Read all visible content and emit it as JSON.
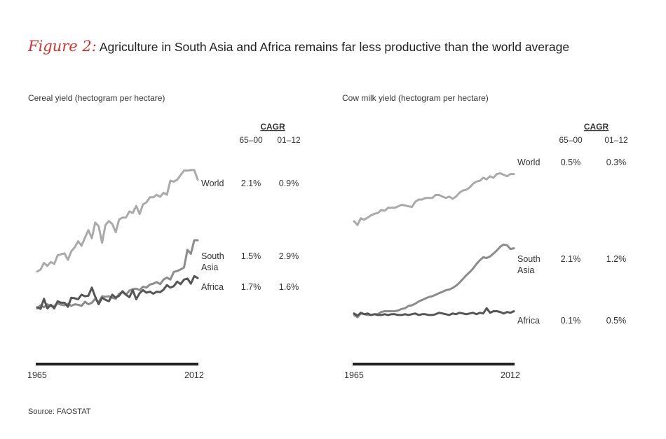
{
  "figure": {
    "label": "Figure 2:",
    "title": "Agriculture in South Asia and Africa remains far less productive than the world average"
  },
  "source": "Source: FAOSTAT",
  "cagr_header": "CAGR",
  "cagr_periods": [
    "65–00",
    "01–12"
  ],
  "chart_data": [
    {
      "type": "line",
      "title": "Cereal yield (hectogram per hectare)",
      "x_start_label": "1965",
      "x_end_label": "2012",
      "xlim": [
        1965,
        2012
      ],
      "series": [
        {
          "name": "World",
          "color": "#aaaaaa",
          "cagr": [
            "2.1%",
            "0.9%"
          ],
          "values": [
            17800,
            18200,
            19500,
            18900,
            19700,
            19300,
            21000,
            21200,
            21400,
            20100,
            21800,
            22600,
            23800,
            22900,
            24500,
            26000,
            24400,
            27500,
            26800,
            23500,
            27000,
            27800,
            27200,
            25600,
            28100,
            28500,
            28500,
            29700,
            29400,
            30800,
            29200,
            31100,
            31500,
            32500,
            32500,
            33000,
            32600,
            33400,
            33000,
            35800,
            35600,
            36000,
            36900,
            37800,
            37800,
            37900,
            37900,
            36000
          ]
        },
        {
          "name": "South Asia",
          "color": "#8c8c8c",
          "label_lines": [
            "South",
            "Asia"
          ],
          "cagr": [
            "1.5%",
            "2.9%"
          ],
          "values": [
            10500,
            11100,
            10700,
            11300,
            10900,
            11000,
            11500,
            11200,
            11100,
            11400,
            11000,
            11300,
            11200,
            11000,
            11800,
            11300,
            11600,
            12400,
            11700,
            12900,
            12800,
            12900,
            12600,
            12400,
            13400,
            13700,
            13200,
            14000,
            14300,
            14400,
            14100,
            14800,
            14600,
            15200,
            15400,
            15700,
            15300,
            16200,
            16600,
            16200,
            17700,
            17900,
            18200,
            18600,
            22100,
            21300,
            24000,
            24000
          ]
        },
        {
          "name": "Africa",
          "color": "#555555",
          "cagr": [
            "1.7%",
            "1.6%"
          ],
          "values": [
            10700,
            10400,
            12400,
            10500,
            11200,
            10500,
            11900,
            11600,
            11600,
            10800,
            12600,
            12500,
            12300,
            13200,
            12900,
            13000,
            14600,
            12800,
            11300,
            12600,
            12200,
            11900,
            13200,
            12600,
            13000,
            13900,
            13200,
            12700,
            14100,
            12300,
            13500,
            14100,
            13600,
            13800,
            13400,
            13800,
            13700,
            14200,
            15100,
            14600,
            14900,
            15800,
            15300,
            16200,
            16400,
            15400,
            16900,
            16500
          ]
        }
      ],
      "ylim": [
        5000,
        39000
      ]
    },
    {
      "type": "line",
      "title": "Cow milk yield (hectogram per hectare)",
      "x_start_label": "1965",
      "x_end_label": "2012",
      "xlim": [
        1965,
        2012
      ],
      "series": [
        {
          "name": "World",
          "color": "#aaaaaa",
          "cagr": [
            "0.5%",
            "0.3%"
          ],
          "values": [
            17500,
            17000,
            17900,
            17700,
            18000,
            18300,
            18500,
            18600,
            19000,
            18900,
            19300,
            19300,
            19300,
            19500,
            19700,
            19600,
            19500,
            19400,
            20100,
            20400,
            20400,
            20600,
            20600,
            20600,
            21000,
            21000,
            20800,
            20600,
            20800,
            20500,
            20800,
            21300,
            21600,
            21700,
            22000,
            22500,
            22800,
            22900,
            23300,
            23100,
            23500,
            23300,
            23800,
            23900,
            23700,
            23500,
            23800,
            23800
          ]
        },
        {
          "name": "South Asia",
          "color": "#8c8c8c",
          "label_lines": [
            "South",
            "Asia"
          ],
          "cagr": [
            "2.1%",
            "1.2%"
          ],
          "values": [
            5000,
            4700,
            5200,
            5100,
            5000,
            5000,
            5100,
            5100,
            5400,
            5500,
            5500,
            5500,
            5500,
            5600,
            5800,
            5900,
            6200,
            6300,
            6500,
            6800,
            7000,
            7200,
            7400,
            7500,
            7700,
            7900,
            8100,
            8300,
            8400,
            8600,
            8900,
            9300,
            9800,
            10300,
            10700,
            11200,
            11800,
            12300,
            12700,
            12600,
            12800,
            13200,
            13600,
            14100,
            14400,
            14300,
            13800,
            13900
          ]
        },
        {
          "name": "Africa",
          "color": "#555555",
          "cagr": [
            "0.1%",
            "0.5%"
          ],
          "values": [
            5200,
            4900,
            5300,
            5100,
            5200,
            5000,
            5100,
            5000,
            5000,
            5100,
            5000,
            5100,
            5100,
            5000,
            5000,
            5100,
            5000,
            5100,
            5200,
            5000,
            5100,
            5100,
            5000,
            5000,
            5100,
            5300,
            5200,
            5100,
            5000,
            5200,
            5100,
            5300,
            5200,
            5100,
            5200,
            5300,
            5100,
            5300,
            5200,
            5900,
            5300,
            5500,
            5500,
            5400,
            5200,
            5400,
            5300,
            5500
          ]
        }
      ],
      "ylim": [
        2000,
        26000
      ]
    }
  ]
}
